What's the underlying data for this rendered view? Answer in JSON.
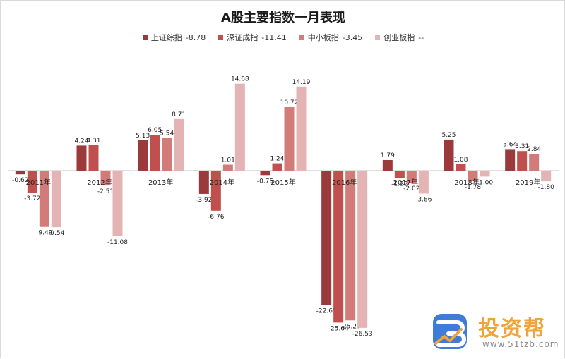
{
  "chart_data": {
    "type": "bar",
    "title": "A股主要指数一月表现",
    "categories": [
      "2011年",
      "2012年",
      "2013年",
      "2014年",
      "2015年",
      "2016年",
      "2017年",
      "2018年",
      "2019年"
    ],
    "series": [
      {
        "name": "上证综指",
        "legend_value": "-8.78",
        "color": "#9b3a3a",
        "values": [
          -0.62,
          4.24,
          5.13,
          -3.92,
          -0.75,
          -22.65,
          1.79,
          5.25,
          3.64
        ]
      },
      {
        "name": "深证成指",
        "legend_value": "-11.41",
        "color": "#c0504d",
        "values": [
          -3.72,
          4.31,
          6.05,
          -6.76,
          1.24,
          -25.64,
          -1.23,
          1.08,
          3.31
        ]
      },
      {
        "name": "中小板指",
        "legend_value": "-3.45",
        "color": "#d27b79",
        "values": [
          -9.49,
          -2.51,
          5.54,
          1.01,
          10.72,
          -25.27,
          -2.02,
          -1.78,
          2.84
        ]
      },
      {
        "name": "创业板指",
        "legend_value": "--",
        "color": "#e3b4b3",
        "values": [
          -9.54,
          -11.08,
          8.71,
          14.68,
          14.19,
          -26.53,
          -3.86,
          -1.0,
          -1.8
        ]
      }
    ],
    "legend_position": "top",
    "grid": false
  },
  "watermark": {
    "brand": "投资帮",
    "url": "www.51tzb.com"
  }
}
